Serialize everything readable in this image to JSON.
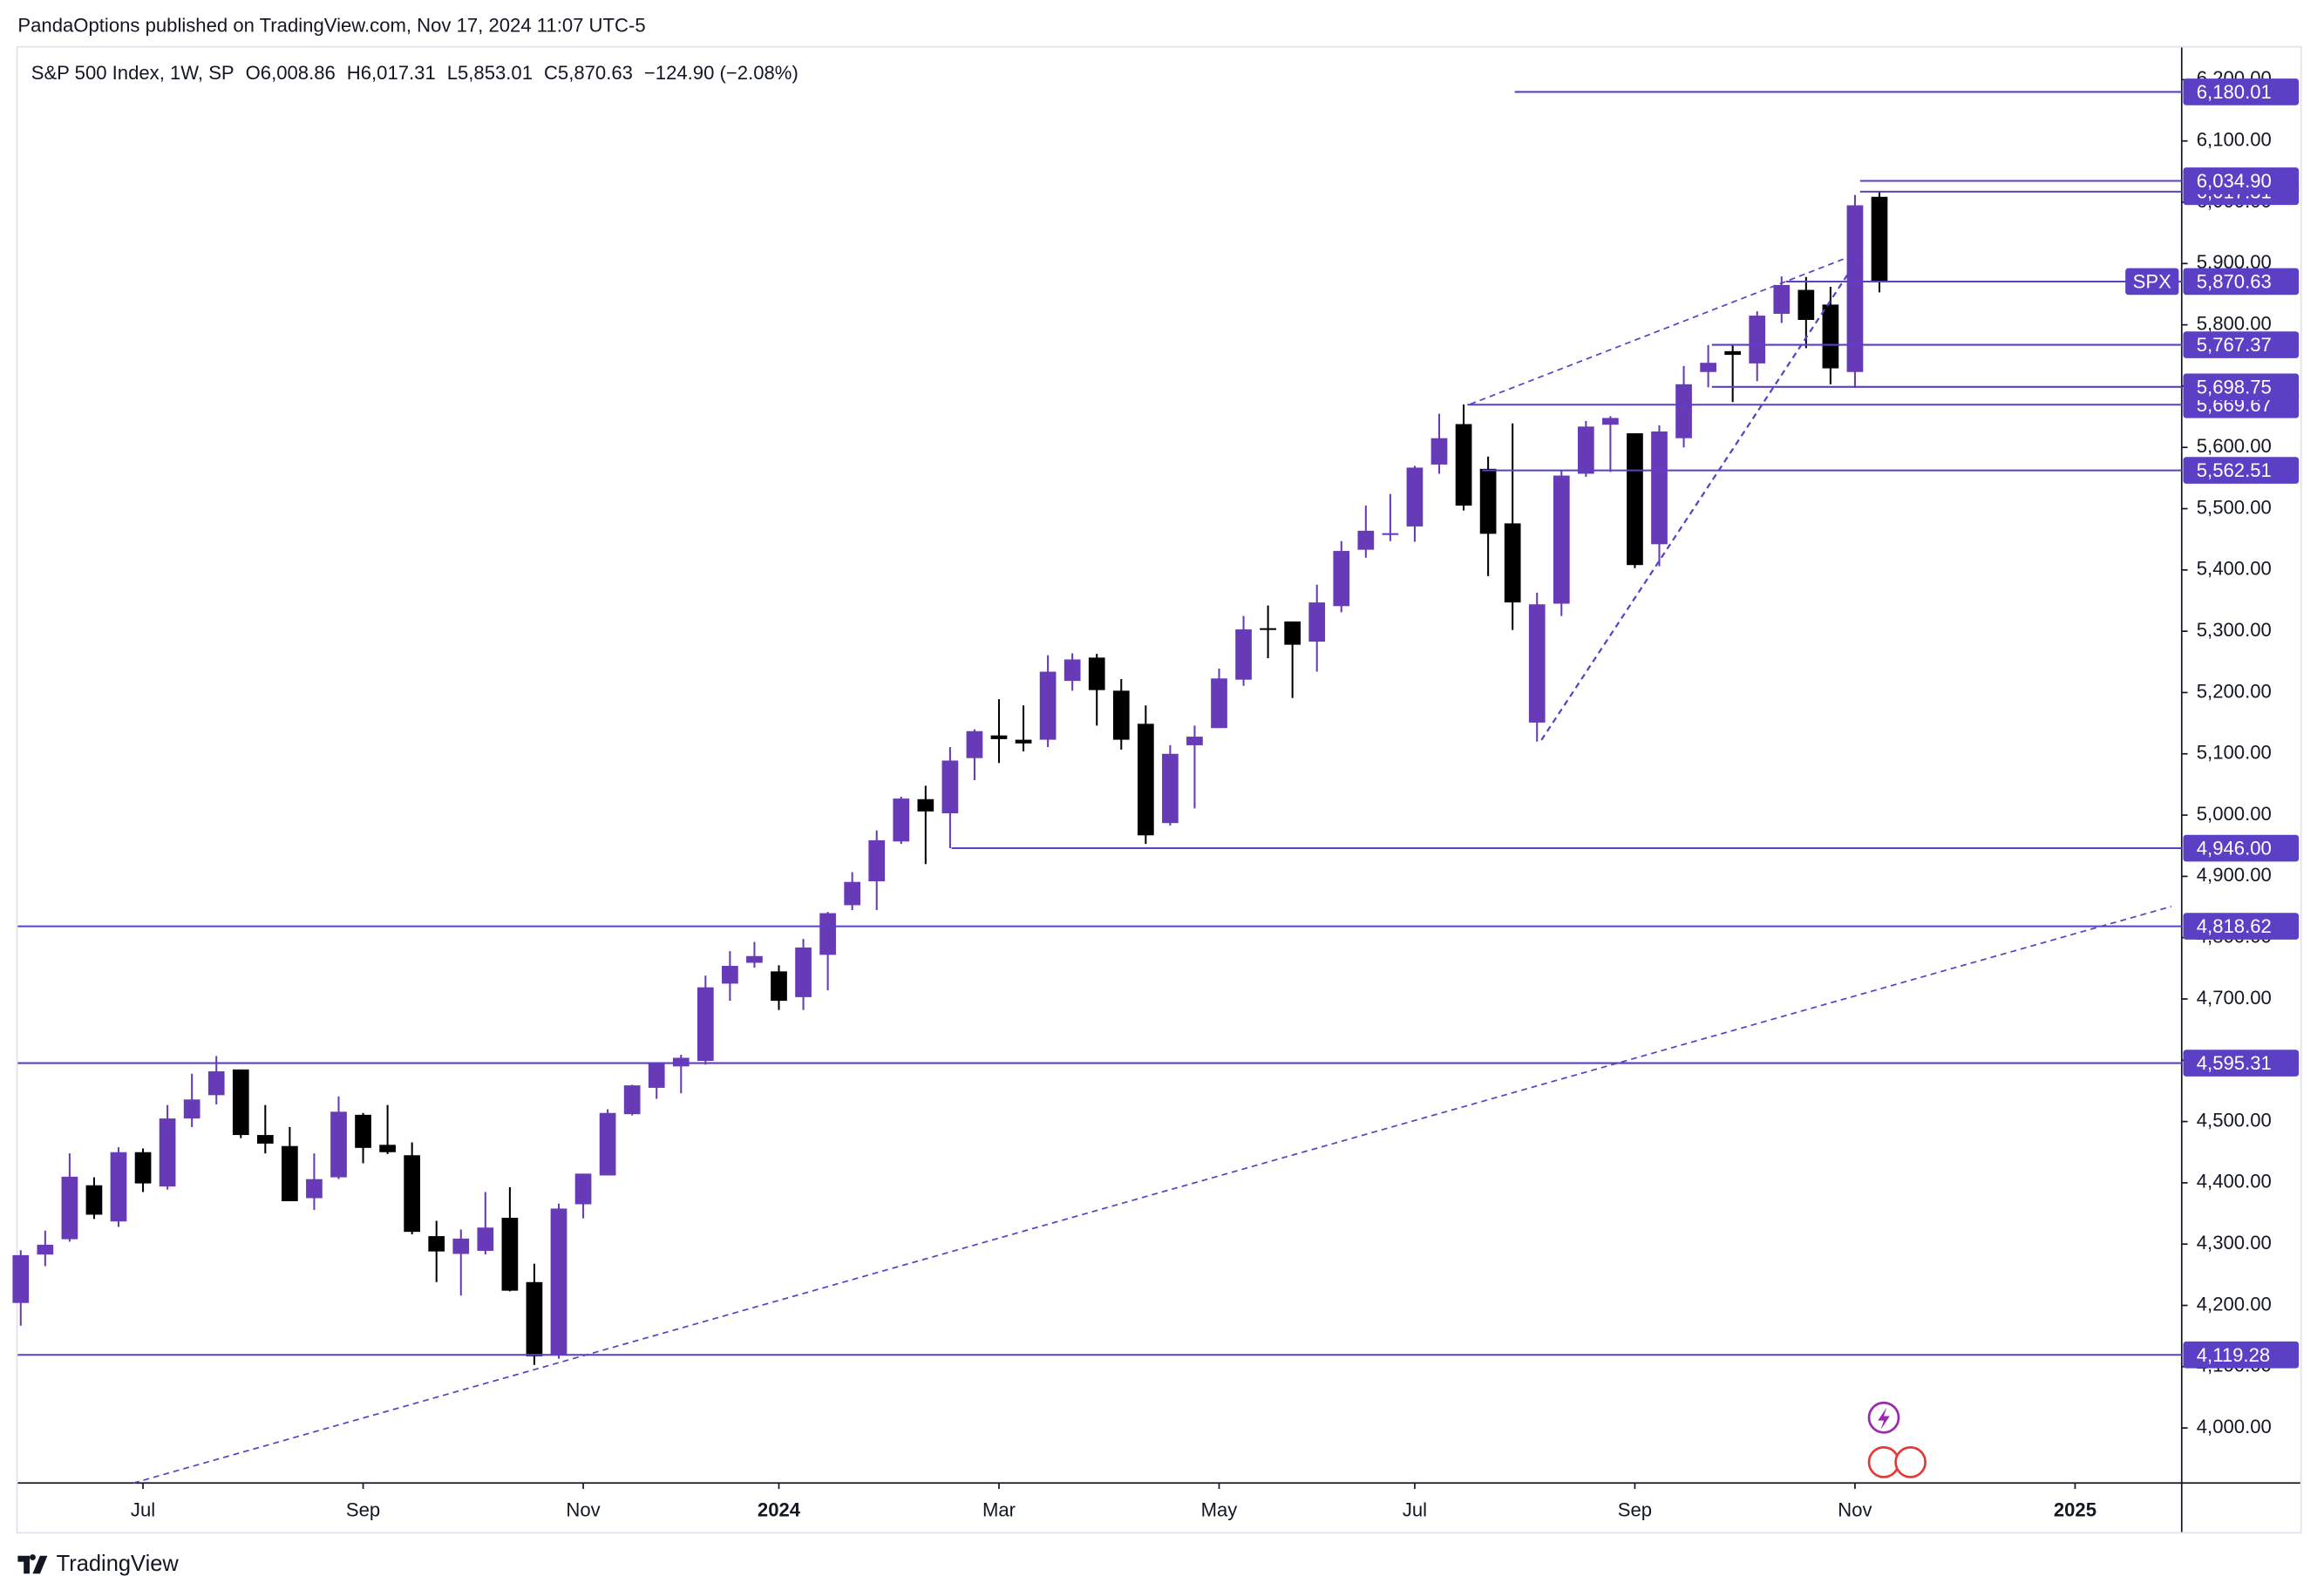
{
  "header": "PandaOptions published on TradingView.com, Nov 17, 2024 11:07 UTC-5",
  "footer": "TradingView",
  "chart_data": {
    "type": "candlestick",
    "legend": {
      "symbol": "S&P 500 Index, 1W, SP",
      "open": "O6,008.86",
      "high": "H6,017.31",
      "low": "L5,853.01",
      "close": "C5,870.63",
      "change": "−124.90 (−2.08%)"
    },
    "up_color": "#673ab7",
    "down_color": "#000000",
    "open": [
      4204,
      4283,
      4308,
      4396,
      4337,
      4450,
      4394,
      4505,
      4543,
      4585,
      4478,
      4460,
      4375,
      4409,
      4511,
      4462,
      4445,
      4313,
      4284,
      4289,
      4343,
      4238,
      4120,
      4365,
      4412,
      4512,
      4555,
      4590,
      4599,
      4725,
      4759,
      4745,
      4703,
      4772,
      4853,
      4892,
      4957,
      5026,
      5003,
      5093,
      5130,
      5123,
      5123,
      5219,
      5257,
      5203,
      5149,
      4987,
      5114,
      5142,
      5221,
      5305,
      5316,
      5283,
      5341,
      5433,
      5460,
      5471,
      5572,
      5638,
      5565,
      5476,
      5151,
      5345,
      5557,
      5637,
      5623,
      5442,
      5615,
      5723,
      5757,
      5737,
      5818,
      5857,
      5833,
      5723,
      6008.86
    ],
    "high": [
      4290,
      4322,
      4448,
      4409,
      4458,
      4456,
      4527,
      4578,
      4607,
      4584,
      4527,
      4491,
      4448,
      4541,
      4514,
      4527,
      4466,
      4338,
      4324,
      4385,
      4393,
      4268,
      4366,
      4415,
      4520,
      4560,
      4595,
      4609,
      4738,
      4778,
      4793,
      4755,
      4798,
      4842,
      4907,
      4975,
      5030,
      5048,
      5111,
      5140,
      5189,
      5179,
      5261,
      5264,
      5263,
      5222,
      5179,
      5114,
      5146,
      5239,
      5325,
      5342,
      5315,
      5376,
      5447,
      5505,
      5524,
      5570,
      5655,
      5670,
      5585,
      5639,
      5363,
      5563,
      5643,
      5651,
      5623,
      5636,
      5733,
      5767,
      5767,
      5822,
      5879,
      5878,
      5862,
      6012,
      6017.31
    ],
    "low": [
      4167,
      4264,
      4304,
      4341,
      4328,
      4385,
      4389,
      4491,
      4528,
      4473,
      4448,
      4370,
      4356,
      4406,
      4432,
      4447,
      4316,
      4238,
      4216,
      4283,
      4223,
      4103,
      4113,
      4342,
      4412,
      4510,
      4537,
      4546,
      4593,
      4697,
      4751,
      4682,
      4682,
      4714,
      4845,
      4845,
      4953,
      4920,
      4946,
      5057,
      5085,
      5104,
      5111,
      5203,
      5146,
      5107,
      4953,
      4983,
      5011,
      5142,
      5211,
      5256,
      5191,
      5234,
      5331,
      5420,
      5447,
      5446,
      5557,
      5497,
      5390,
      5302,
      5120,
      5325,
      5552,
      5560,
      5403,
      5406,
      5600,
      5698,
      5674,
      5708,
      5803,
      5762,
      5703,
      5697,
      5853.01
    ],
    "close": [
      4282,
      4299,
      4410,
      4348,
      4450,
      4399,
      4505,
      4536,
      4582,
      4478,
      4464,
      4370,
      4406,
      4516,
      4457,
      4450,
      4320,
      4288,
      4309,
      4327,
      4224,
      4117,
      4358,
      4415,
      4514,
      4559,
      4594,
      4604,
      4719,
      4754,
      4770,
      4697,
      4784,
      4840,
      4891,
      4959,
      5027,
      5006,
      5089,
      5137,
      5124,
      5117,
      5234,
      5254,
      5204,
      5123,
      4967,
      5100,
      5128,
      5223,
      5303,
      5304,
      5278,
      5347,
      5431,
      5464,
      5460,
      5567,
      5615,
      5505,
      5459,
      5347,
      5344,
      5554,
      5634,
      5648,
      5408,
      5626,
      5703,
      5738,
      5751,
      5815,
      5865,
      5808,
      5729,
      5995,
      5870.63
    ],
    "xlim": [
      -0.12,
      88.36
    ],
    "xticks": [
      {
        "value": 5,
        "label": "Jul"
      },
      {
        "value": 14,
        "label": "Sep"
      },
      {
        "value": 23,
        "label": "Nov"
      },
      {
        "value": 31,
        "label": "2024"
      },
      {
        "value": 40,
        "label": "Mar"
      },
      {
        "value": 49,
        "label": "May"
      },
      {
        "value": 57,
        "label": "Jul"
      },
      {
        "value": 66,
        "label": "Sep"
      },
      {
        "value": 75,
        "label": "Nov"
      },
      {
        "value": 84,
        "label": "2025"
      }
    ],
    "ylim": [
      3910.19,
      6252.41
    ],
    "yticks": [
      {
        "value": 4000,
        "label": "4,000.00"
      },
      {
        "value": 4100,
        "label": "4,100.00"
      },
      {
        "value": 4200,
        "label": "4,200.00"
      },
      {
        "value": 4300,
        "label": "4,300.00"
      },
      {
        "value": 4400,
        "label": "4,400.00"
      },
      {
        "value": 4500,
        "label": "4,500.00"
      },
      {
        "value": 4600,
        "label": "4,600.00"
      },
      {
        "value": 4700,
        "label": "4,700.00"
      },
      {
        "value": 4800,
        "label": "4,800.00"
      },
      {
        "value": 4900,
        "label": "4,900.00"
      },
      {
        "value": 5000,
        "label": "5,000.00"
      },
      {
        "value": 5100,
        "label": "5,100.00"
      },
      {
        "value": 5200,
        "label": "5,200.00"
      },
      {
        "value": 5300,
        "label": "5,300.00"
      },
      {
        "value": 5400,
        "label": "5,400.00"
      },
      {
        "value": 5500,
        "label": "5,500.00"
      },
      {
        "value": 5600,
        "label": "5,600.00"
      },
      {
        "value": 5700,
        "label": "5,700.00"
      },
      {
        "value": 5800,
        "label": "5,800.00"
      },
      {
        "value": 5900,
        "label": "5,900.00"
      },
      {
        "value": 6000,
        "label": "6,000.00"
      },
      {
        "value": 6100,
        "label": "6,100.00"
      },
      {
        "value": 6200,
        "label": "6,200.00"
      }
    ],
    "level_color": "#5b3fc4",
    "levels": [
      {
        "value": 6180.01,
        "label": "6,180.01"
      },
      {
        "value": 6017.31,
        "label": "6,017.31"
      },
      {
        "value": 6034.9,
        "label": "6,034.90"
      },
      {
        "value": 5870.63,
        "label": "5,870.63",
        "tag": "SPX"
      },
      {
        "value": 5767.37,
        "label": "5,767.37"
      },
      {
        "value": 5669.67,
        "label": "5,669.67"
      },
      {
        "value": 5698.75,
        "label": "5,698.75"
      },
      {
        "value": 5562.51,
        "label": "5,562.51"
      },
      {
        "value": 4946.0,
        "label": "4,946.00"
      },
      {
        "value": 4818.62,
        "label": "4,818.62"
      },
      {
        "value": 4595.31,
        "label": "4,595.31"
      },
      {
        "value": 4119.28,
        "label": "4,119.28"
      }
    ]
  }
}
